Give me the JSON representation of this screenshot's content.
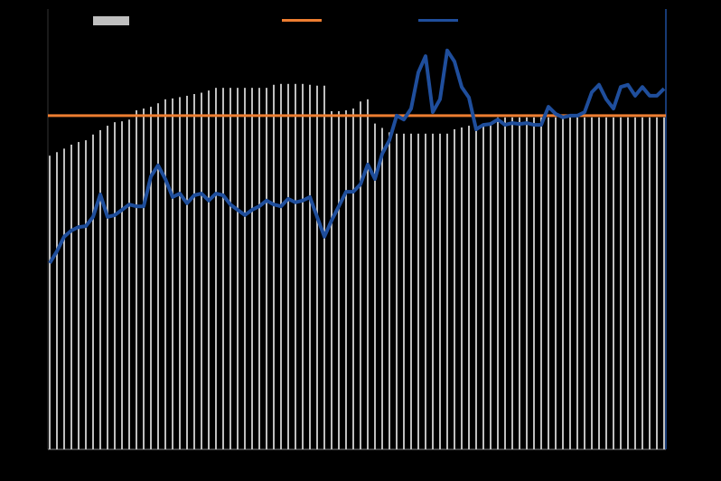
{
  "chart_data": {
    "type": "combo",
    "categories": [
      null,
      null,
      null,
      null,
      null,
      null,
      null,
      null,
      null,
      null,
      null,
      null,
      null,
      null,
      null,
      null,
      null,
      null,
      null,
      null,
      null,
      null,
      null,
      null,
      null,
      null,
      null,
      null,
      null,
      null,
      null,
      null,
      null,
      null,
      null,
      null,
      null,
      null,
      null,
      null,
      null,
      null,
      null,
      null,
      null,
      null,
      null,
      null,
      null,
      null,
      null,
      null,
      null,
      null,
      null,
      null,
      null,
      null,
      null,
      null,
      null,
      null,
      null,
      null,
      null,
      null,
      null,
      null,
      null,
      null,
      null,
      null,
      null,
      null,
      null,
      null,
      null,
      null,
      null,
      null,
      null,
      null,
      null,
      null,
      null,
      null
    ],
    "ylim": [
      0,
      100
    ],
    "series": [
      {
        "kind": "bar",
        "color": "#bfbfbf",
        "values": [
          66.7,
          67.5,
          68.3,
          69.2,
          69.8,
          70.2,
          71.5,
          72.5,
          73.5,
          74.3,
          74.5,
          74.9,
          77,
          77.4,
          77.8,
          78.6,
          79.5,
          79.7,
          80,
          80.3,
          80.7,
          81,
          81.5,
          82.1,
          82.1,
          82.1,
          82.1,
          82.1,
          82.1,
          82.1,
          82.1,
          82.8,
          83,
          83,
          83,
          83,
          82.8,
          82.6,
          82.6,
          76.8,
          76.8,
          77,
          77.4,
          79,
          79.5,
          74,
          73,
          72,
          71.7,
          71.7,
          71.7,
          71.7,
          71.7,
          71.7,
          71.7,
          71.7,
          72.7,
          73.1,
          73.5,
          73.7,
          73.9,
          74.1,
          75.4,
          75.4,
          75.4,
          75.4,
          75.4,
          75.4,
          75.4,
          75.4,
          75.4,
          75.4,
          75.4,
          75.4,
          75.4,
          75.4,
          75.4,
          75.4,
          75.4,
          75.4,
          75.4,
          75.4,
          75.4,
          75.4,
          75.4,
          75.4
        ]
      },
      {
        "kind": "hline",
        "color": "#ed7d31",
        "value": 75.8
      },
      {
        "kind": "line",
        "color": "#1f4e9c",
        "values": [
          42.3,
          45.0,
          48.3,
          49.7,
          50.5,
          50.7,
          52.8,
          57.9,
          52.8,
          53.2,
          54.4,
          55.6,
          55.2,
          55.2,
          62.0,
          64.5,
          61.4,
          57.3,
          58.1,
          55.9,
          57.7,
          58.1,
          56.5,
          58.1,
          57.7,
          55.6,
          54.4,
          53.2,
          54.4,
          55.2,
          56.5,
          55.6,
          55.2,
          56.9,
          56.1,
          56.5,
          57.3,
          52.8,
          48.3,
          52.0,
          55.2,
          58.5,
          58.5,
          60.2,
          64.7,
          61.4,
          67.1,
          70.2,
          75.8,
          74.9,
          77.4,
          85.6,
          89.3,
          76.6,
          79.5,
          90.6,
          88.1,
          82.3,
          79.9,
          72.7,
          73.7,
          73.9,
          74.9,
          73.7,
          74.1,
          73.9,
          74.1,
          73.7,
          73.7,
          77.8,
          76.2,
          75.4,
          75.8,
          75.8,
          76.6,
          81.1,
          82.8,
          79.5,
          77.4,
          82.3,
          82.8,
          80.3,
          82.3,
          80.3,
          80.3,
          81.9
        ]
      }
    ]
  }
}
